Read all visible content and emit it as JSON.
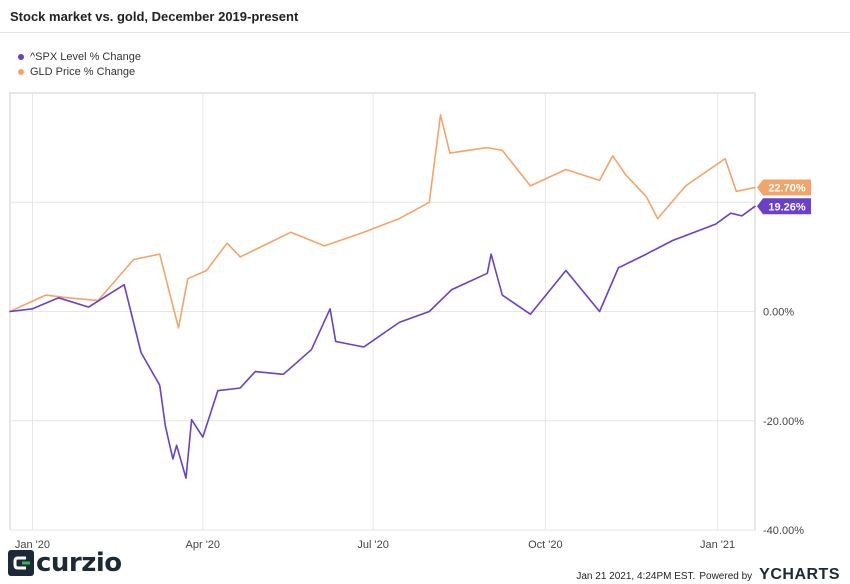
{
  "title": "Stock market vs. gold, December 2019-present",
  "legend": [
    {
      "label": "^SPX Level % Change",
      "color": "#6a3fc9"
    },
    {
      "label": "GLD Price % Change",
      "color": "#f4a469"
    }
  ],
  "footer": {
    "brand": "curzio",
    "timestamp": "Jan 21 2021, 4:24PM EST.",
    "powered_by": "Powered by",
    "provider": "YCHARTS"
  },
  "chart_data": {
    "type": "line",
    "title": "Stock market vs. gold, December 2019-present",
    "xlabel": "",
    "ylabel": "",
    "ylim": [
      -40,
      40
    ],
    "xlim": [
      "2019-12-20",
      "2021-01-21"
    ],
    "x_ticks": [
      {
        "label": "Jan '20",
        "date": "2020-01-01"
      },
      {
        "label": "Apr '20",
        "date": "2020-04-01"
      },
      {
        "label": "Jul '20",
        "date": "2020-07-01"
      },
      {
        "label": "Oct '20",
        "date": "2020-10-01"
      },
      {
        "label": "Jan '21",
        "date": "2021-01-01"
      }
    ],
    "y_ticks": [
      {
        "label": "-40.00%",
        "value": -40
      },
      {
        "label": "-20.00%",
        "value": -20
      },
      {
        "label": "0.00%",
        "value": 0
      }
    ],
    "gridlines": [
      -40,
      -20,
      0,
      20
    ],
    "grid": true,
    "legend_position": "top-left",
    "end_labels": [
      {
        "label": "22.70%",
        "series": "GLD Price % Change",
        "value": 22.7,
        "color": "#f4a469"
      },
      {
        "label": "19.26%",
        "series": "^SPX Level % Change",
        "value": 19.26,
        "color": "#6a3fc9"
      }
    ],
    "series": [
      {
        "name": "^SPX Level % Change",
        "color": "#6a3fc9",
        "points": [
          [
            "2019-12-20",
            0.0
          ],
          [
            "2020-01-01",
            0.5
          ],
          [
            "2020-01-15",
            2.5
          ],
          [
            "2020-01-31",
            0.8
          ],
          [
            "2020-02-19",
            4.9
          ],
          [
            "2020-02-28",
            -7.5
          ],
          [
            "2020-03-09",
            -13.5
          ],
          [
            "2020-03-12",
            -21.0
          ],
          [
            "2020-03-16",
            -27.0
          ],
          [
            "2020-03-18",
            -24.5
          ],
          [
            "2020-03-23",
            -30.5
          ],
          [
            "2020-03-26",
            -19.8
          ],
          [
            "2020-04-01",
            -23.0
          ],
          [
            "2020-04-09",
            -14.5
          ],
          [
            "2020-04-21",
            -14.0
          ],
          [
            "2020-04-29",
            -11.0
          ],
          [
            "2020-05-14",
            -11.5
          ],
          [
            "2020-05-29",
            -7.0
          ],
          [
            "2020-06-08",
            0.5
          ],
          [
            "2020-06-11",
            -5.5
          ],
          [
            "2020-06-26",
            -6.5
          ],
          [
            "2020-07-15",
            -2.0
          ],
          [
            "2020-07-31",
            0.0
          ],
          [
            "2020-08-12",
            4.0
          ],
          [
            "2020-08-31",
            7.0
          ],
          [
            "2020-09-02",
            10.5
          ],
          [
            "2020-09-08",
            3.0
          ],
          [
            "2020-09-23",
            -0.5
          ],
          [
            "2020-10-12",
            7.5
          ],
          [
            "2020-10-30",
            0.0
          ],
          [
            "2020-11-09",
            8.0
          ],
          [
            "2020-11-24",
            10.5
          ],
          [
            "2020-12-08",
            13.0
          ],
          [
            "2020-12-31",
            16.0
          ],
          [
            "2021-01-08",
            18.0
          ],
          [
            "2021-01-14",
            17.5
          ],
          [
            "2021-01-21",
            19.26
          ]
        ]
      },
      {
        "name": "GLD Price % Change",
        "color": "#f4a469",
        "points": [
          [
            "2019-12-20",
            0.0
          ],
          [
            "2020-01-08",
            3.0
          ],
          [
            "2020-01-20",
            2.5
          ],
          [
            "2020-02-05",
            2.0
          ],
          [
            "2020-02-24",
            9.5
          ],
          [
            "2020-03-09",
            10.5
          ],
          [
            "2020-03-19",
            -3.0
          ],
          [
            "2020-03-24",
            6.0
          ],
          [
            "2020-04-03",
            7.5
          ],
          [
            "2020-04-14",
            12.5
          ],
          [
            "2020-04-21",
            10.0
          ],
          [
            "2020-05-18",
            14.5
          ],
          [
            "2020-06-05",
            12.0
          ],
          [
            "2020-06-26",
            14.5
          ],
          [
            "2020-07-15",
            17.0
          ],
          [
            "2020-07-31",
            20.0
          ],
          [
            "2020-08-06",
            36.0
          ],
          [
            "2020-08-11",
            29.0
          ],
          [
            "2020-08-31",
            30.0
          ],
          [
            "2020-09-08",
            29.5
          ],
          [
            "2020-09-23",
            23.0
          ],
          [
            "2020-10-12",
            26.0
          ],
          [
            "2020-10-30",
            24.0
          ],
          [
            "2020-11-06",
            28.5
          ],
          [
            "2020-11-13",
            25.0
          ],
          [
            "2020-11-24",
            21.0
          ],
          [
            "2020-11-30",
            17.0
          ],
          [
            "2020-12-15",
            23.0
          ],
          [
            "2021-01-05",
            28.0
          ],
          [
            "2021-01-11",
            22.0
          ],
          [
            "2021-01-21",
            22.7
          ]
        ]
      }
    ]
  }
}
